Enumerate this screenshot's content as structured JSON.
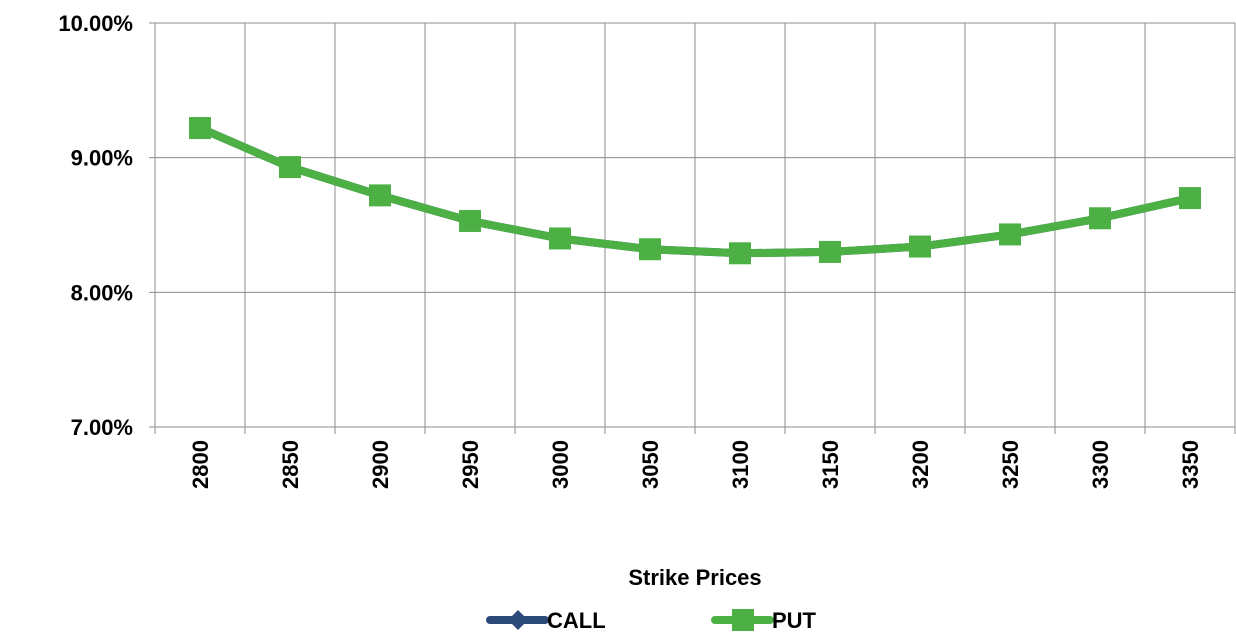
{
  "chart_data": {
    "type": "line",
    "x_label": "Strike Prices",
    "categories": [
      "2800",
      "2850",
      "2900",
      "2950",
      "3000",
      "3050",
      "3100",
      "3150",
      "3200",
      "3250",
      "3300",
      "3350"
    ],
    "series": [
      {
        "name": "CALL",
        "color": "#2c4a78",
        "marker": "diamond",
        "values": [
          9.22,
          8.93,
          8.72,
          8.53,
          8.4,
          8.32,
          8.29,
          8.3,
          8.34,
          8.43,
          8.55,
          8.7
        ]
      },
      {
        "name": "PUT",
        "color": "#4cb045",
        "marker": "square",
        "values": [
          9.22,
          8.93,
          8.72,
          8.53,
          8.4,
          8.32,
          8.29,
          8.3,
          8.34,
          8.43,
          8.55,
          8.7
        ]
      }
    ],
    "ylim": [
      7,
      10
    ],
    "yticks": [
      {
        "value": 7,
        "label": "7.00%"
      },
      {
        "value": 8,
        "label": "8.00%"
      },
      {
        "value": 9,
        "label": "9.00%"
      },
      {
        "value": 10,
        "label": "10.00%"
      }
    ],
    "grid": true,
    "legend": "bottom"
  }
}
